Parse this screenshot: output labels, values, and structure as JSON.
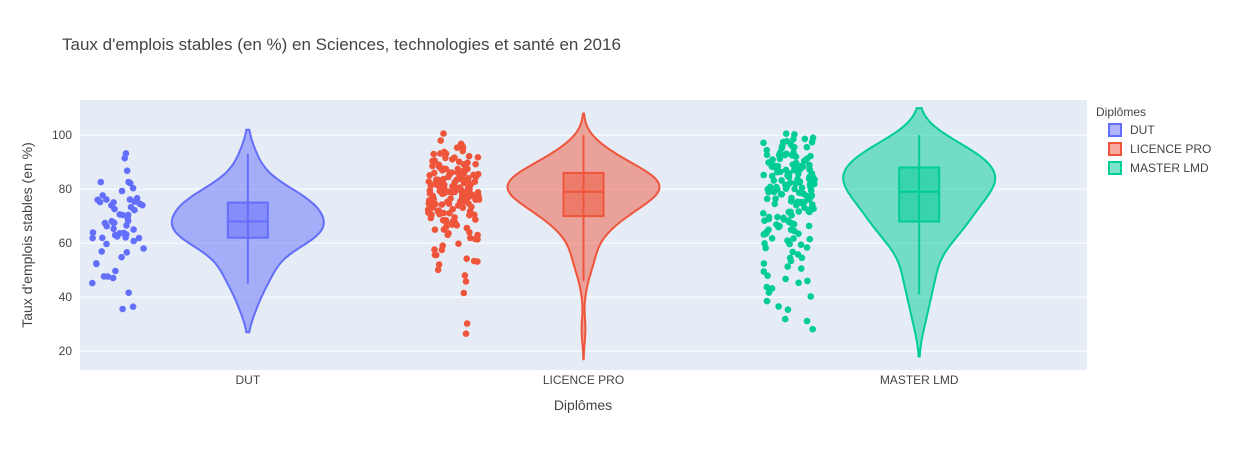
{
  "chart_data": {
    "type": "violin",
    "title": "Taux d'emplois stables (en %) en Sciences, technologies et santé en 2016",
    "xlabel": "Diplômes",
    "ylabel": "Taux d'emplois stables (en %)",
    "categories": [
      "DUT",
      "LICENCE PRO",
      "MASTER LMD"
    ],
    "ylim": [
      13,
      113
    ],
    "yticks": [
      20,
      40,
      60,
      80,
      100
    ],
    "grid": true,
    "legend": {
      "title": "Diplômes",
      "position": "right"
    },
    "series": [
      {
        "name": "DUT",
        "color": "#636efa",
        "fill": "rgba(99,110,250,0.5)",
        "box": {
          "q1": 62,
          "median": 68,
          "q3": 75,
          "lower_whisker": 45,
          "upper_whisker": 93
        },
        "violin_range": [
          27,
          102
        ],
        "points": [
          93,
          92,
          87,
          83,
          83,
          82,
          80,
          79,
          78,
          77,
          76,
          76,
          76,
          75,
          75,
          75,
          75,
          74,
          74,
          73,
          73,
          72,
          71,
          70,
          70,
          69,
          68,
          68,
          68,
          67,
          67,
          66,
          66,
          65,
          65,
          64,
          64,
          64,
          63,
          63,
          63,
          62,
          62,
          62,
          62,
          61,
          60,
          58,
          57,
          57,
          55,
          53,
          52,
          50,
          48,
          48,
          47,
          45,
          42,
          37,
          36
        ]
      },
      {
        "name": "LICENCE PRO",
        "color": "#ef553b",
        "fill": "rgba(239,85,59,0.5)",
        "box": {
          "q1": 70,
          "median": 79,
          "q3": 86,
          "lower_whisker": 46,
          "upper_whisker": 100
        },
        "violin_range": [
          17,
          108
        ],
        "points": [
          100,
          98,
          97,
          96,
          96,
          95,
          95,
          94,
          94,
          93,
          93,
          93,
          92,
          92,
          92,
          91,
          91,
          91,
          90,
          90,
          90,
          90,
          89,
          89,
          89,
          89,
          88,
          88,
          88,
          88,
          88,
          87,
          87,
          87,
          87,
          87,
          86,
          86,
          86,
          86,
          86,
          86,
          85,
          85,
          85,
          85,
          85,
          85,
          85,
          84,
          84,
          84,
          84,
          84,
          84,
          84,
          83,
          83,
          83,
          83,
          83,
          83,
          83,
          82,
          82,
          82,
          82,
          82,
          82,
          82,
          82,
          81,
          81,
          81,
          81,
          81,
          81,
          81,
          80,
          80,
          80,
          80,
          80,
          80,
          80,
          80,
          79,
          79,
          79,
          79,
          79,
          79,
          79,
          78,
          78,
          78,
          78,
          78,
          78,
          78,
          77,
          77,
          77,
          77,
          77,
          77,
          76,
          76,
          76,
          76,
          76,
          76,
          75,
          75,
          75,
          75,
          75,
          75,
          74,
          74,
          74,
          74,
          74,
          73,
          73,
          73,
          73,
          73,
          72,
          72,
          72,
          72,
          71,
          71,
          71,
          71,
          70,
          70,
          70,
          70,
          69,
          69,
          69,
          68,
          68,
          68,
          67,
          67,
          67,
          66,
          66,
          65,
          65,
          64,
          64,
          63,
          63,
          62,
          62,
          61,
          60,
          59,
          58,
          57,
          56,
          55,
          54,
          53,
          53,
          52,
          50,
          48,
          46,
          42,
          30,
          26
        ]
      },
      {
        "name": "MASTER LMD",
        "color": "#00cc96",
        "fill": "rgba(0,204,150,0.5)",
        "box": {
          "q1": 68,
          "median": 79,
          "q3": 88,
          "lower_whisker": 41,
          "upper_whisker": 100
        },
        "violin_range": [
          18,
          110
        ],
        "points": [
          100,
          100,
          99,
          99,
          98,
          98,
          97,
          97,
          97,
          96,
          96,
          96,
          95,
          95,
          95,
          94,
          94,
          94,
          93,
          93,
          93,
          93,
          92,
          92,
          92,
          92,
          91,
          91,
          91,
          91,
          90,
          90,
          90,
          90,
          89,
          89,
          89,
          89,
          89,
          88,
          88,
          88,
          88,
          88,
          87,
          87,
          87,
          87,
          87,
          86,
          86,
          86,
          86,
          86,
          85,
          85,
          85,
          85,
          85,
          84,
          84,
          84,
          84,
          84,
          83,
          83,
          83,
          83,
          83,
          82,
          82,
          82,
          82,
          82,
          81,
          81,
          81,
          81,
          80,
          80,
          80,
          80,
          80,
          79,
          79,
          79,
          79,
          78,
          78,
          78,
          78,
          77,
          77,
          77,
          77,
          76,
          76,
          76,
          76,
          75,
          75,
          75,
          75,
          74,
          74,
          74,
          73,
          73,
          73,
          72,
          72,
          72,
          71,
          71,
          71,
          70,
          70,
          70,
          69,
          69,
          69,
          68,
          68,
          68,
          67,
          67,
          67,
          66,
          66,
          66,
          65,
          65,
          65,
          64,
          64,
          64,
          63,
          63,
          62,
          62,
          61,
          61,
          60,
          60,
          59,
          58,
          58,
          57,
          56,
          55,
          54,
          53,
          52,
          51,
          50,
          49,
          48,
          47,
          46,
          45,
          44,
          43,
          42,
          40,
          38,
          37,
          35,
          32,
          31,
          28
        ]
      }
    ]
  }
}
